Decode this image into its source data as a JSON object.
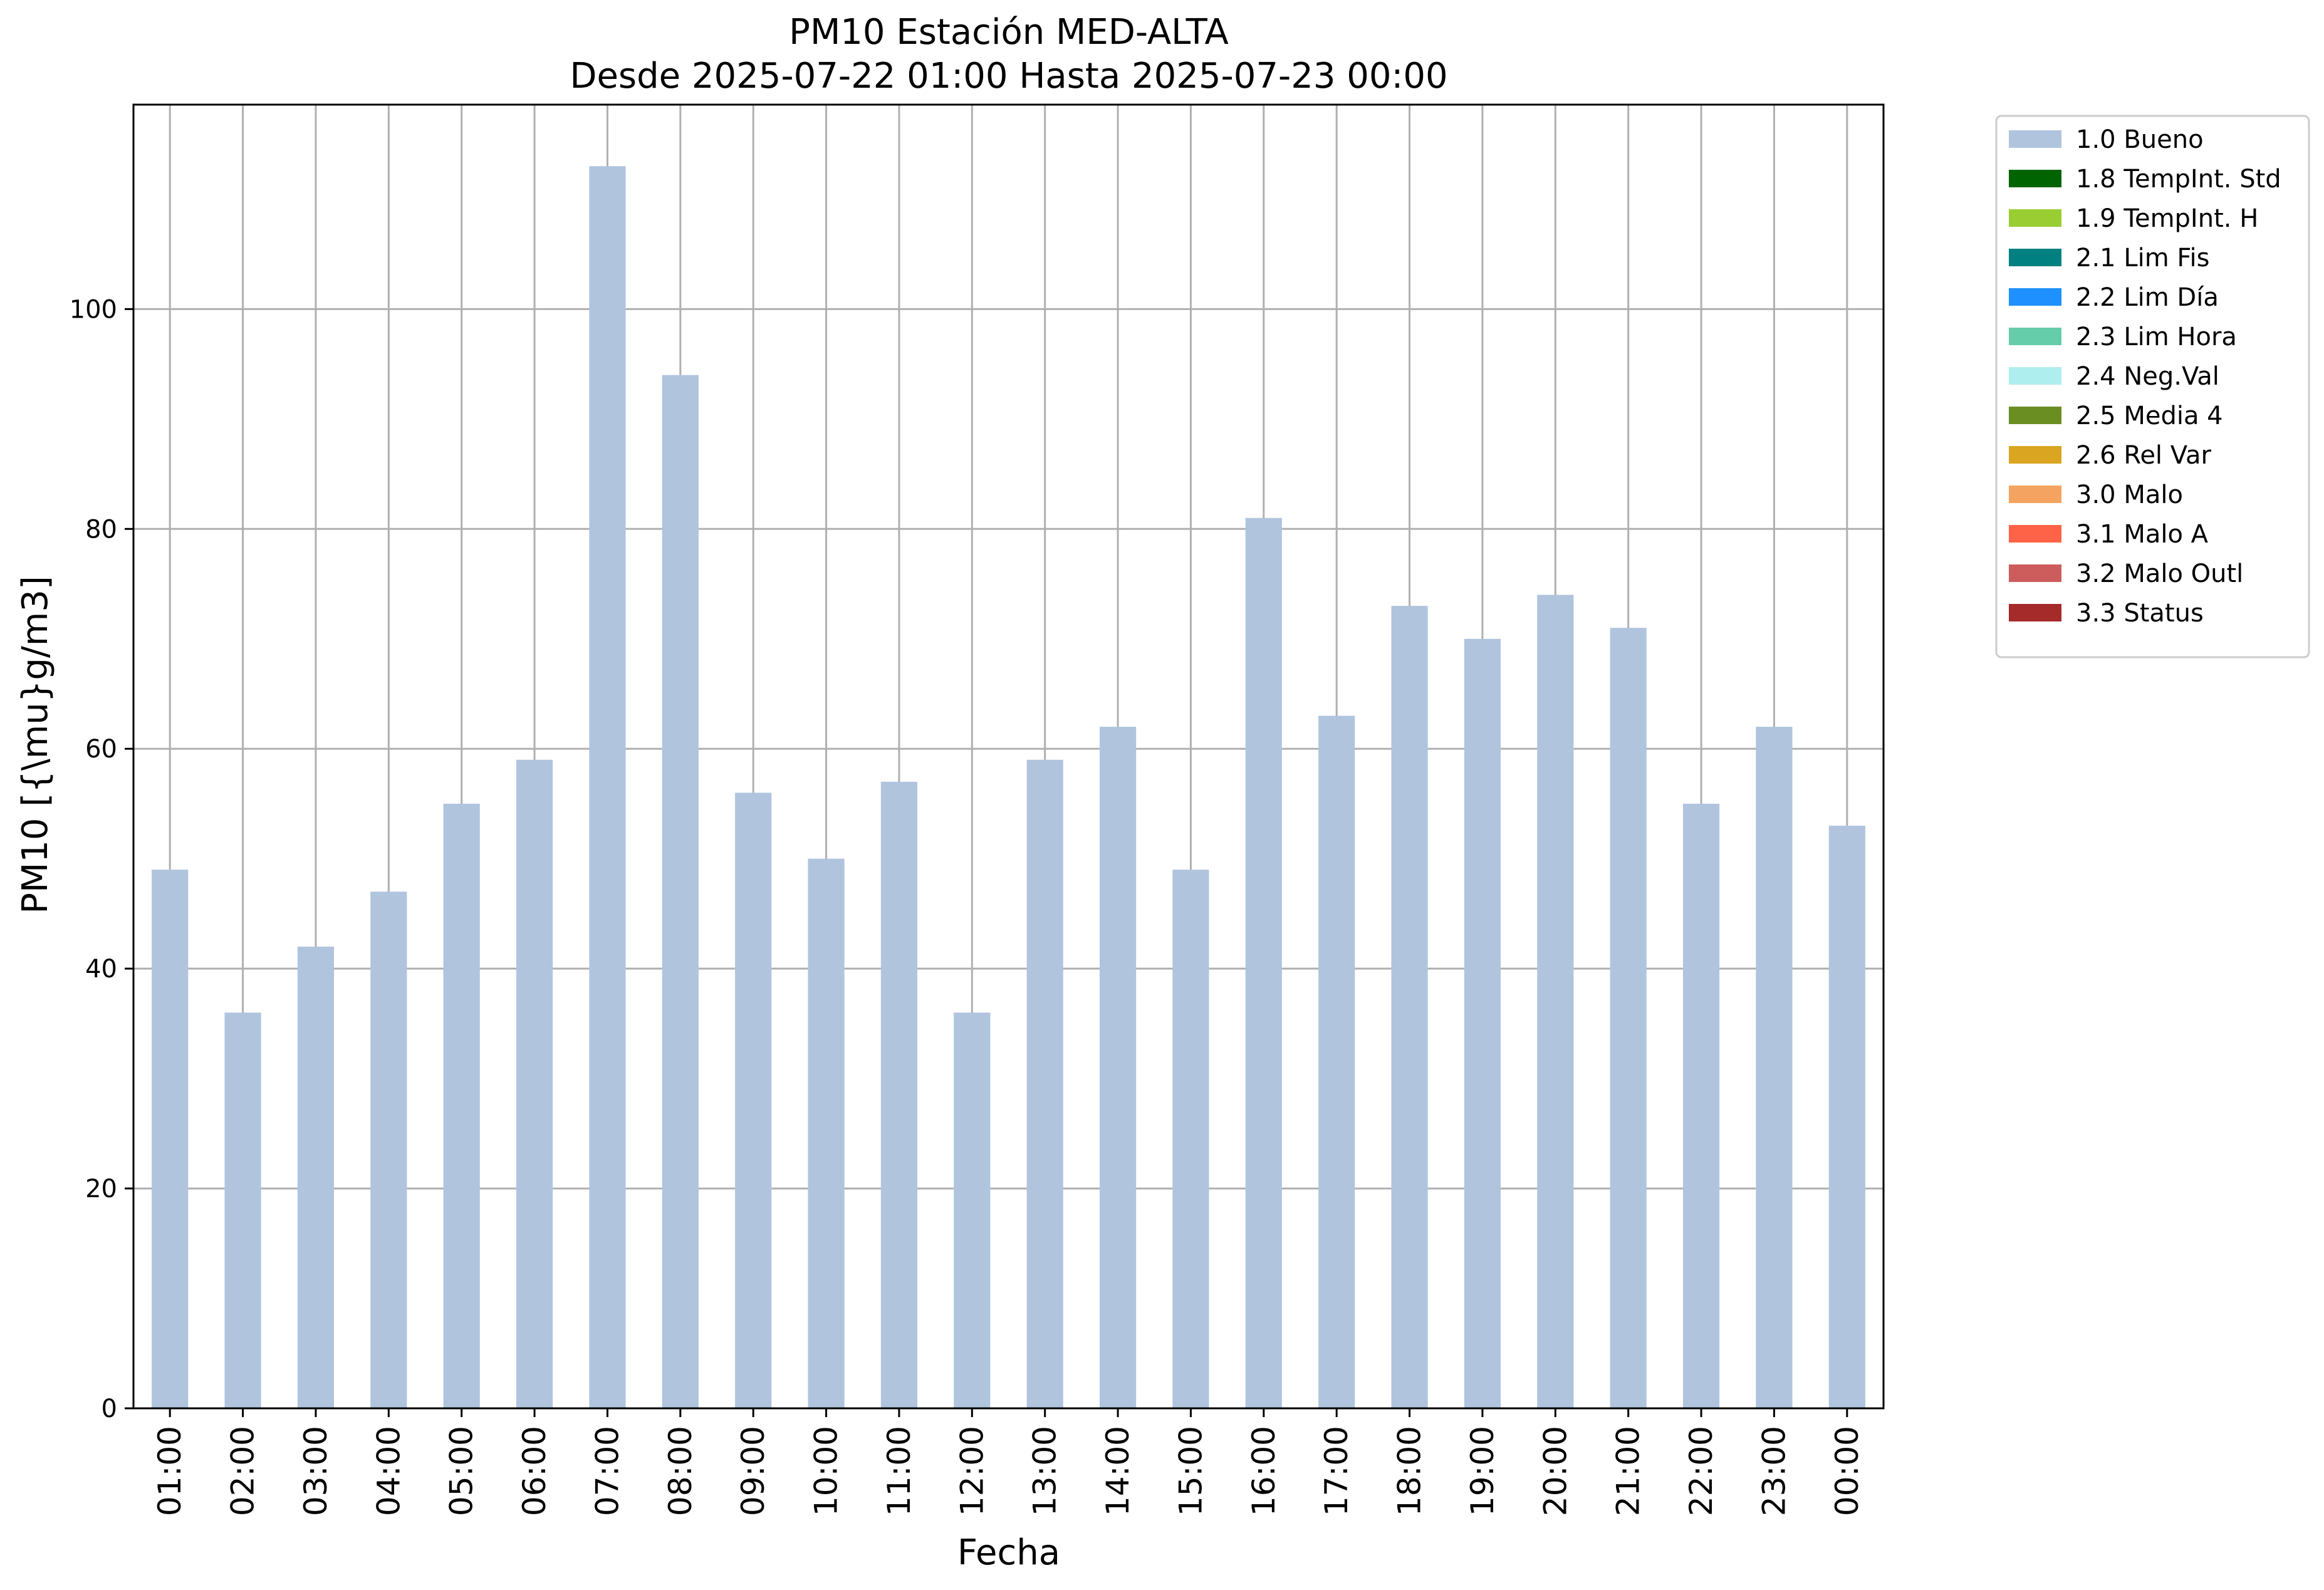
{
  "chart_data": {
    "type": "bar",
    "title": "PM10 Estación MED-ALTA",
    "subtitle": "Desde 2025-07-22 01:00 Hasta 2025-07-23 00:00",
    "xlabel": "Fecha",
    "ylabel": "PM10 [{\\mu}g/m3]",
    "ylim": [
      0,
      118.6
    ],
    "yticks": [
      0,
      20,
      40,
      60,
      80,
      100
    ],
    "grid": true,
    "legend_position": "outside-right",
    "categories": [
      "01:00",
      "02:00",
      "03:00",
      "04:00",
      "05:00",
      "06:00",
      "07:00",
      "08:00",
      "09:00",
      "10:00",
      "11:00",
      "12:00",
      "13:00",
      "14:00",
      "15:00",
      "16:00",
      "17:00",
      "18:00",
      "19:00",
      "20:00",
      "21:00",
      "22:00",
      "23:00",
      "00:00"
    ],
    "series": [
      {
        "name": "1.0 Bueno",
        "color": "#b0c4de",
        "values": [
          49,
          36,
          42,
          47,
          55,
          59,
          113,
          94,
          56,
          50,
          57,
          36,
          59,
          62,
          49,
          81,
          63,
          73,
          70,
          74,
          71,
          55,
          62,
          53
        ]
      }
    ],
    "legend": [
      {
        "label": "1.0 Bueno",
        "color": "#b0c4de"
      },
      {
        "label": "1.8 TempInt. Std",
        "color": "#006400"
      },
      {
        "label": "1.9 TempInt. H",
        "color": "#9acd32"
      },
      {
        "label": "2.1 Lim Fis",
        "color": "#008080"
      },
      {
        "label": "2.2 Lim Día",
        "color": "#1e90ff"
      },
      {
        "label": "2.3 Lim Hora",
        "color": "#66cdaa"
      },
      {
        "label": "2.4 Neg.Val",
        "color": "#afeeee"
      },
      {
        "label": "2.5 Media 4",
        "color": "#6b8e23"
      },
      {
        "label": "2.6 Rel Var",
        "color": "#daa520"
      },
      {
        "label": "3.0 Malo",
        "color": "#f4a460"
      },
      {
        "label": "3.1 Malo A",
        "color": "#ff6347"
      },
      {
        "label": "3.2 Malo Outl",
        "color": "#cd5c5c"
      },
      {
        "label": "3.3 Status",
        "color": "#a52a2a"
      }
    ]
  }
}
